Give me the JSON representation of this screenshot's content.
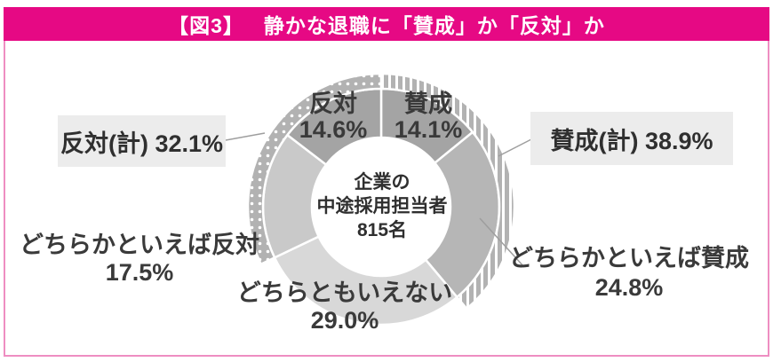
{
  "header": {
    "figure_tag": "【図3】",
    "title": "静かな退職に「賛成」か「反対」か"
  },
  "colors": {
    "accent_pink": "#e60984",
    "frame_border_pink": "#ee8ec2",
    "label_box_bg": "#ececec",
    "band_gray": "#b2b2b2",
    "text_dark": "#3a3a3a",
    "leader_line": "#9e9e9e"
  },
  "chart_data": {
    "type": "pie",
    "subtype": "donut",
    "title": "静かな退職に「賛成」か「反対」か",
    "unit": "%",
    "start_angle_deg": 0,
    "direction": "clockwise",
    "segments": [
      {
        "label": "賛成",
        "value": 14.1,
        "pct_label": "14.1%",
        "color": "#a4a4a4"
      },
      {
        "label": "どちらかといえば賛成",
        "value": 24.8,
        "pct_label": "24.8%",
        "color": "#b6b6b6"
      },
      {
        "label": "どちらともいえない",
        "value": 29.0,
        "pct_label": "29.0%",
        "color": "#d8d8d8"
      },
      {
        "label": "どちらかといえば反対",
        "value": 17.5,
        "pct_label": "17.5%",
        "color": "#c9c9c9"
      },
      {
        "label": "反対",
        "value": 14.6,
        "pct_label": "14.6%",
        "color": "#a4a4a4"
      }
    ],
    "totals": [
      {
        "label": "賛成(計)",
        "value": 38.9,
        "display": "賛成(計) 38.9%",
        "pattern": "stripes",
        "covers_segments": [
          0,
          1
        ]
      },
      {
        "label": "反対(計)",
        "value": 32.1,
        "display": "反対(計) 32.1%",
        "pattern": "dots",
        "covers_segments": [
          3,
          4
        ]
      }
    ],
    "center": {
      "line1": "企業の",
      "line2": "中途採用担当者",
      "line3": "815名"
    }
  }
}
